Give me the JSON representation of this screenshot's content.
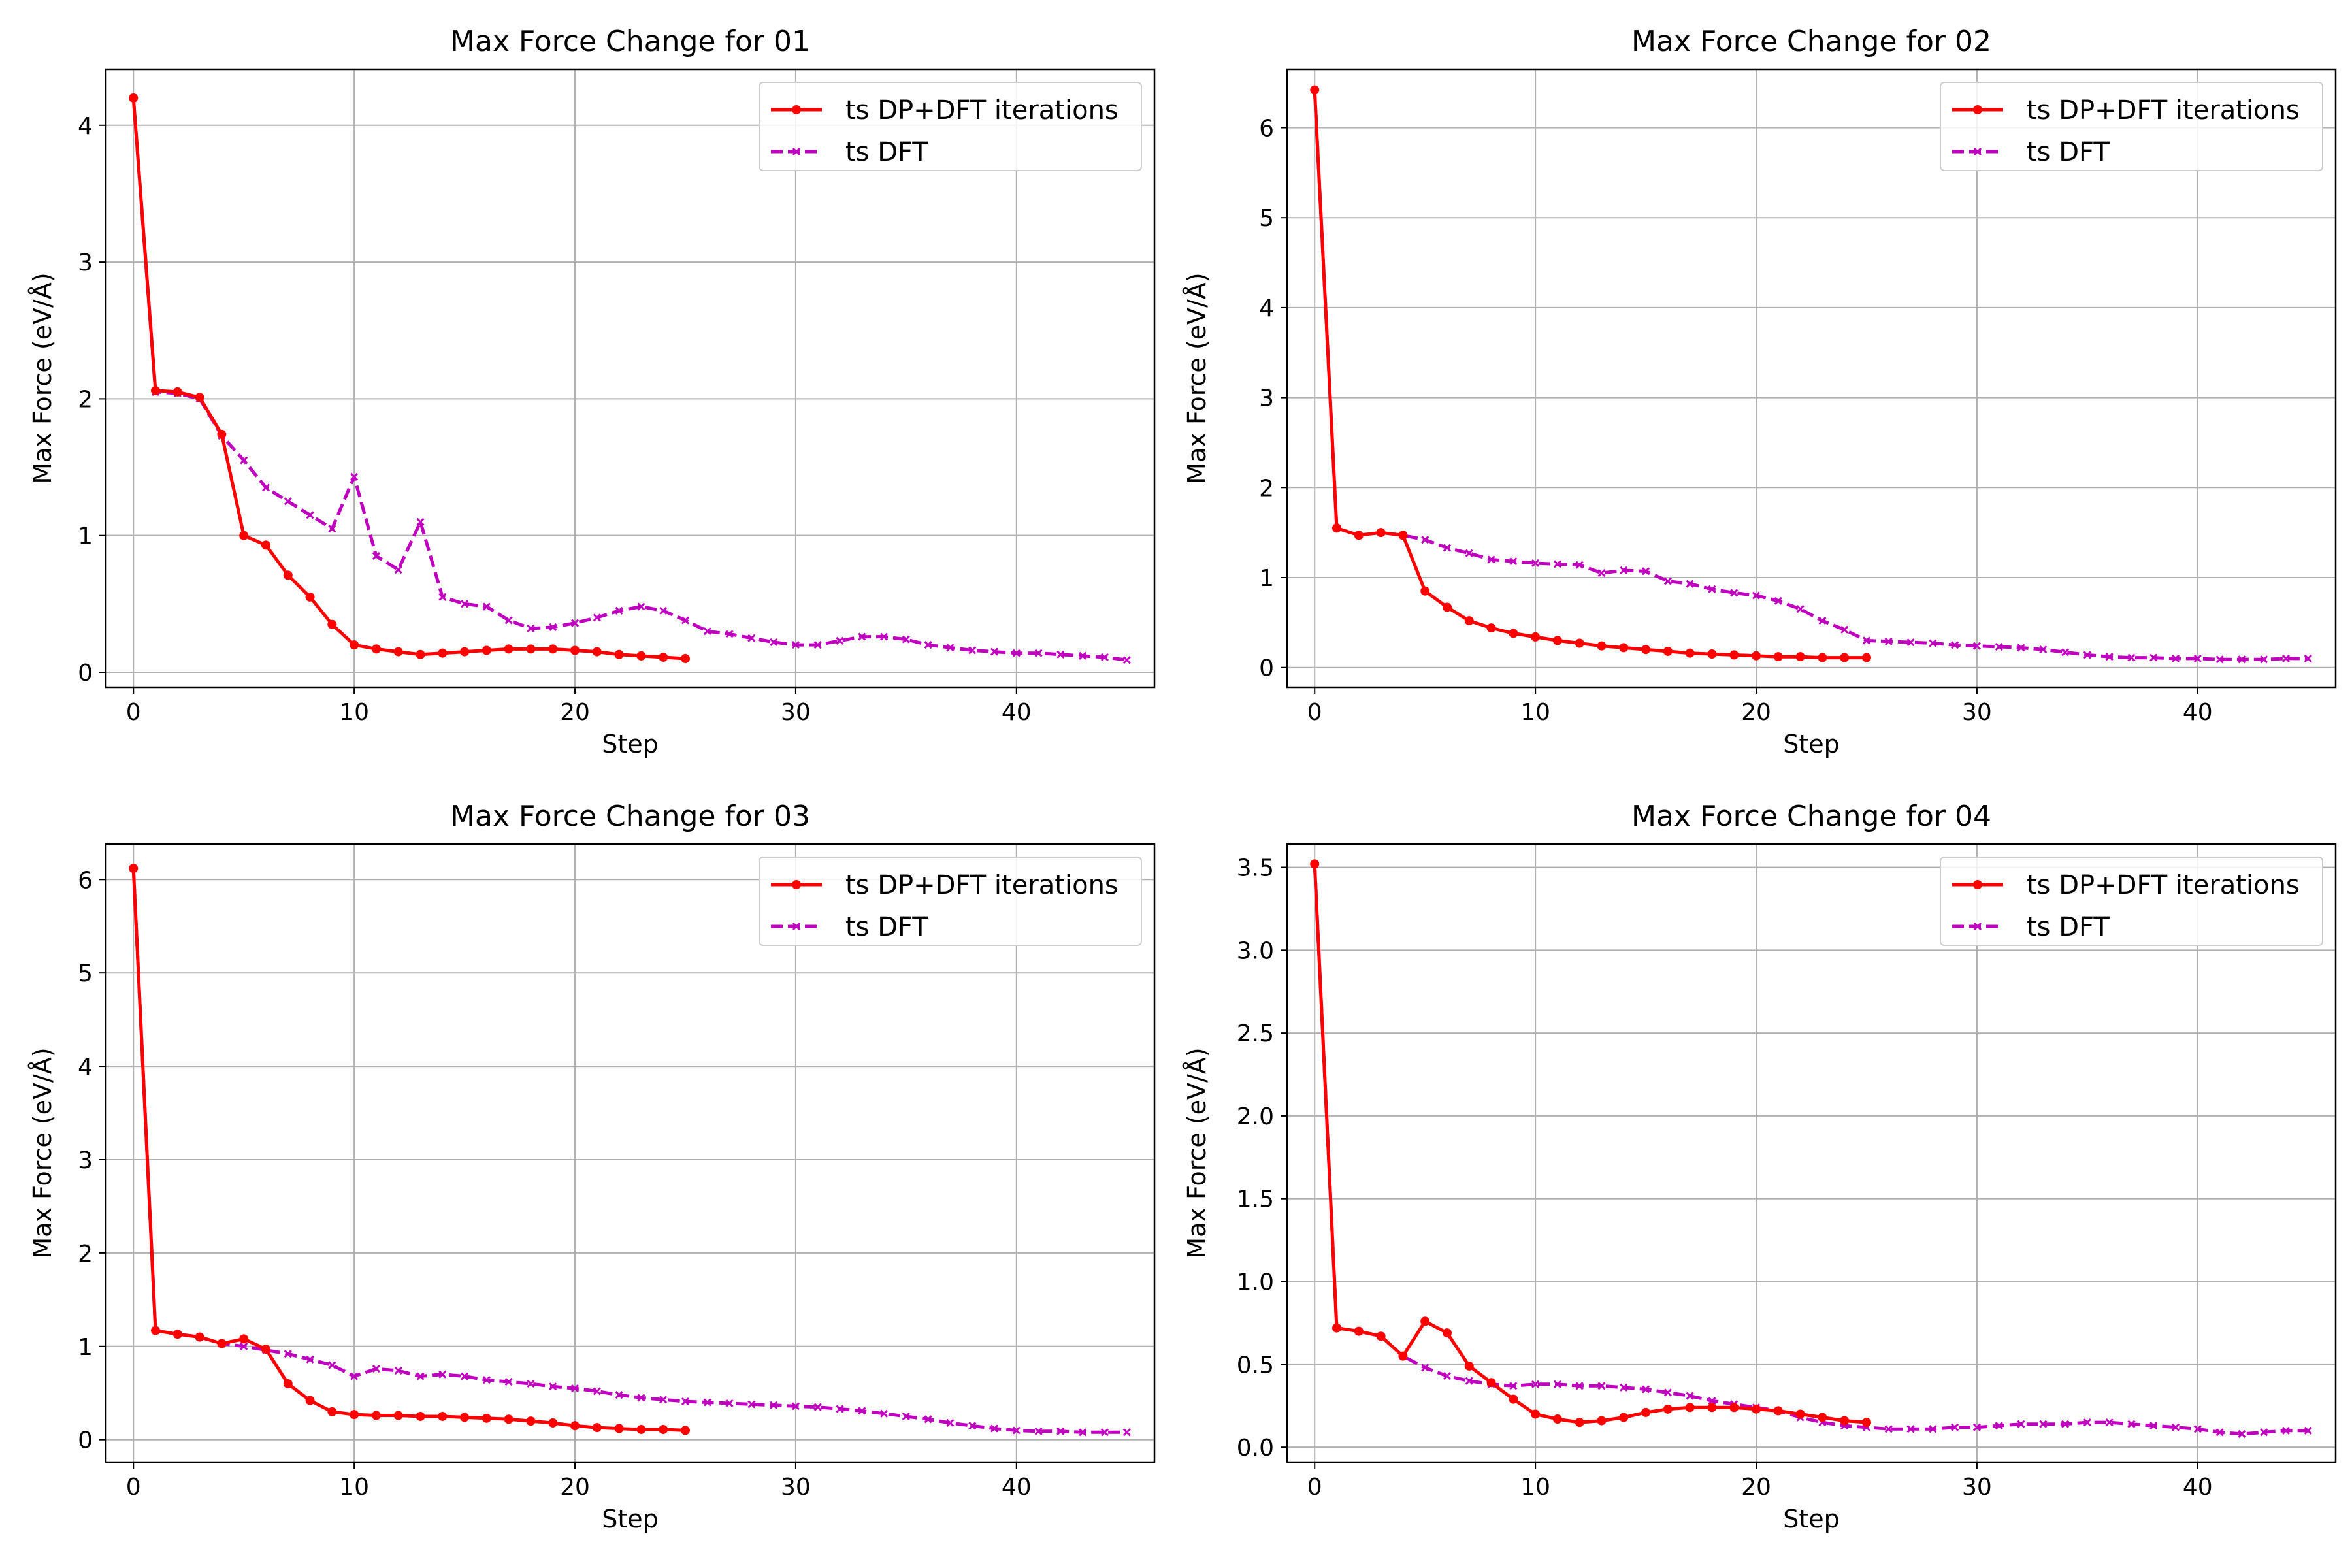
{
  "chart_data": [
    {
      "type": "line",
      "title": "Max Force Change for 01",
      "xlabel": "Step",
      "ylabel": "Max Force (eV/Å)",
      "xlim": [
        -1.25,
        46.25
      ],
      "ylim": [
        -0.11,
        4.41
      ],
      "xticks": [
        0,
        10,
        20,
        30,
        40
      ],
      "yticks": [
        0,
        1,
        2,
        3,
        4
      ],
      "ytick_labels": [
        "0",
        "1",
        "2",
        "3",
        "4"
      ],
      "grid": true,
      "legend": "top-right",
      "series": [
        {
          "name": "ts DP+DFT iterations",
          "color": "#ff0000",
          "style": "solid",
          "marker": "circle",
          "x": [
            0,
            1,
            2,
            3,
            4,
            5,
            6,
            7,
            8,
            9,
            10,
            11,
            12,
            13,
            14,
            15,
            16,
            17,
            18,
            19,
            20,
            21,
            22,
            23,
            24,
            25
          ],
          "values": [
            4.2,
            2.06,
            2.05,
            2.01,
            1.74,
            1.0,
            0.93,
            0.71,
            0.55,
            0.35,
            0.2,
            0.17,
            0.15,
            0.13,
            0.14,
            0.15,
            0.16,
            0.17,
            0.17,
            0.17,
            0.16,
            0.15,
            0.13,
            0.12,
            0.11,
            0.1
          ]
        },
        {
          "name": "ts DFT",
          "color": "#bf00bf",
          "style": "dashed",
          "marker": "x",
          "x": [
            0,
            1,
            2,
            3,
            4,
            5,
            6,
            7,
            8,
            9,
            10,
            11,
            12,
            13,
            14,
            15,
            16,
            17,
            18,
            19,
            20,
            21,
            22,
            23,
            24,
            25,
            26,
            27,
            28,
            29,
            30,
            31,
            32,
            33,
            34,
            35,
            36,
            37,
            38,
            39,
            40,
            41,
            42,
            43,
            44,
            45
          ],
          "values": [
            4.2,
            2.05,
            2.04,
            2.0,
            1.73,
            1.55,
            1.35,
            1.25,
            1.15,
            1.05,
            1.43,
            0.85,
            0.75,
            1.1,
            0.55,
            0.5,
            0.48,
            0.38,
            0.32,
            0.33,
            0.36,
            0.4,
            0.45,
            0.48,
            0.45,
            0.38,
            0.3,
            0.28,
            0.25,
            0.22,
            0.2,
            0.2,
            0.23,
            0.26,
            0.26,
            0.24,
            0.2,
            0.18,
            0.16,
            0.15,
            0.14,
            0.14,
            0.13,
            0.12,
            0.11,
            0.09
          ]
        }
      ]
    },
    {
      "type": "line",
      "title": "Max Force Change for 02",
      "xlabel": "Step",
      "ylabel": "Max Force (eV/Å)",
      "xlim": [
        -1.25,
        46.25
      ],
      "ylim": [
        -0.22,
        6.65
      ],
      "xticks": [
        0,
        10,
        20,
        30,
        40
      ],
      "yticks": [
        0,
        1,
        2,
        3,
        4,
        5,
        6
      ],
      "ytick_labels": [
        "0",
        "1",
        "2",
        "3",
        "4",
        "5",
        "6"
      ],
      "grid": true,
      "legend": "top-right",
      "series": [
        {
          "name": "ts DP+DFT iterations",
          "color": "#ff0000",
          "style": "solid",
          "marker": "circle",
          "x": [
            0,
            1,
            2,
            3,
            4,
            5,
            6,
            7,
            8,
            9,
            10,
            11,
            12,
            13,
            14,
            15,
            16,
            17,
            18,
            19,
            20,
            21,
            22,
            23,
            24,
            25
          ],
          "values": [
            6.42,
            1.55,
            1.47,
            1.5,
            1.47,
            0.85,
            0.67,
            0.52,
            0.44,
            0.38,
            0.34,
            0.3,
            0.27,
            0.24,
            0.22,
            0.2,
            0.18,
            0.16,
            0.15,
            0.14,
            0.13,
            0.12,
            0.12,
            0.11,
            0.11,
            0.11
          ]
        },
        {
          "name": "ts DFT",
          "color": "#bf00bf",
          "style": "dashed",
          "marker": "x",
          "x": [
            0,
            1,
            2,
            3,
            4,
            5,
            6,
            7,
            8,
            9,
            10,
            11,
            12,
            13,
            14,
            15,
            16,
            17,
            18,
            19,
            20,
            21,
            22,
            23,
            24,
            25,
            26,
            27,
            28,
            29,
            30,
            31,
            32,
            33,
            34,
            35,
            36,
            37,
            38,
            39,
            40,
            41,
            42,
            43,
            44,
            45
          ],
          "values": [
            6.42,
            1.55,
            1.47,
            1.5,
            1.47,
            1.42,
            1.33,
            1.27,
            1.2,
            1.18,
            1.16,
            1.15,
            1.14,
            1.05,
            1.08,
            1.07,
            0.96,
            0.93,
            0.87,
            0.83,
            0.8,
            0.74,
            0.65,
            0.52,
            0.42,
            0.3,
            0.29,
            0.28,
            0.27,
            0.25,
            0.24,
            0.23,
            0.22,
            0.2,
            0.17,
            0.14,
            0.12,
            0.11,
            0.11,
            0.1,
            0.1,
            0.09,
            0.09,
            0.09,
            0.1,
            0.1
          ]
        }
      ]
    },
    {
      "type": "line",
      "title": "Max Force Change for 03",
      "xlabel": "Step",
      "ylabel": "Max Force (eV/Å)",
      "xlim": [
        -1.25,
        46.25
      ],
      "ylim": [
        -0.24,
        6.38
      ],
      "xticks": [
        0,
        10,
        20,
        30,
        40
      ],
      "yticks": [
        0,
        1,
        2,
        3,
        4,
        5,
        6
      ],
      "ytick_labels": [
        "0",
        "1",
        "2",
        "3",
        "4",
        "5",
        "6"
      ],
      "grid": true,
      "legend": "top-right",
      "series": [
        {
          "name": "ts DP+DFT iterations",
          "color": "#ff0000",
          "style": "solid",
          "marker": "circle",
          "x": [
            0,
            1,
            2,
            3,
            4,
            5,
            6,
            7,
            8,
            9,
            10,
            11,
            12,
            13,
            14,
            15,
            16,
            17,
            18,
            19,
            20,
            21,
            22,
            23,
            24,
            25
          ],
          "values": [
            6.12,
            1.17,
            1.13,
            1.1,
            1.03,
            1.08,
            0.97,
            0.6,
            0.42,
            0.3,
            0.27,
            0.26,
            0.26,
            0.25,
            0.25,
            0.24,
            0.23,
            0.22,
            0.2,
            0.18,
            0.15,
            0.13,
            0.12,
            0.11,
            0.11,
            0.1
          ]
        },
        {
          "name": "ts DFT",
          "color": "#bf00bf",
          "style": "dashed",
          "marker": "x",
          "x": [
            0,
            1,
            2,
            3,
            4,
            5,
            6,
            7,
            8,
            9,
            10,
            11,
            12,
            13,
            14,
            15,
            16,
            17,
            18,
            19,
            20,
            21,
            22,
            23,
            24,
            25,
            26,
            27,
            28,
            29,
            30,
            31,
            32,
            33,
            34,
            35,
            36,
            37,
            38,
            39,
            40,
            41,
            42,
            43,
            44,
            45
          ],
          "values": [
            6.12,
            1.17,
            1.13,
            1.1,
            1.03,
            1.0,
            0.96,
            0.92,
            0.86,
            0.8,
            0.68,
            0.76,
            0.74,
            0.68,
            0.7,
            0.68,
            0.64,
            0.62,
            0.6,
            0.57,
            0.55,
            0.52,
            0.48,
            0.45,
            0.43,
            0.41,
            0.4,
            0.39,
            0.38,
            0.37,
            0.36,
            0.35,
            0.33,
            0.31,
            0.28,
            0.25,
            0.22,
            0.18,
            0.15,
            0.12,
            0.1,
            0.09,
            0.09,
            0.08,
            0.08,
            0.08
          ]
        }
      ]
    },
    {
      "type": "line",
      "title": "Max Force Change for 04",
      "xlabel": "Step",
      "ylabel": "Max Force (eV/Å)",
      "xlim": [
        -1.25,
        46.25
      ],
      "ylim": [
        -0.09,
        3.64
      ],
      "xticks": [
        0,
        10,
        20,
        30,
        40
      ],
      "yticks": [
        0,
        0.5,
        1,
        1.5,
        2,
        2.5,
        3,
        3.5
      ],
      "ytick_labels": [
        "0.0",
        "0.5",
        "1.0",
        "1.5",
        "2.0",
        "2.5",
        "3.0",
        "3.5"
      ],
      "grid": true,
      "legend": "top-right",
      "series": [
        {
          "name": "ts DP+DFT iterations",
          "color": "#ff0000",
          "style": "solid",
          "marker": "circle",
          "x": [
            0,
            1,
            2,
            3,
            4,
            5,
            6,
            7,
            8,
            9,
            10,
            11,
            12,
            13,
            14,
            15,
            16,
            17,
            18,
            19,
            20,
            21,
            22,
            23,
            24,
            25
          ],
          "values": [
            3.52,
            0.72,
            0.7,
            0.67,
            0.55,
            0.76,
            0.69,
            0.49,
            0.39,
            0.29,
            0.2,
            0.17,
            0.15,
            0.16,
            0.18,
            0.21,
            0.23,
            0.24,
            0.24,
            0.24,
            0.23,
            0.22,
            0.2,
            0.18,
            0.16,
            0.15
          ]
        },
        {
          "name": "ts DFT",
          "color": "#bf00bf",
          "style": "dashed",
          "marker": "x",
          "x": [
            0,
            1,
            2,
            3,
            4,
            5,
            6,
            7,
            8,
            9,
            10,
            11,
            12,
            13,
            14,
            15,
            16,
            17,
            18,
            19,
            20,
            21,
            22,
            23,
            24,
            25,
            26,
            27,
            28,
            29,
            30,
            31,
            32,
            33,
            34,
            35,
            36,
            37,
            38,
            39,
            40,
            41,
            42,
            43,
            44,
            45
          ],
          "values": [
            3.52,
            0.72,
            0.7,
            0.67,
            0.55,
            0.48,
            0.43,
            0.4,
            0.38,
            0.37,
            0.38,
            0.38,
            0.37,
            0.37,
            0.36,
            0.35,
            0.33,
            0.31,
            0.28,
            0.26,
            0.24,
            0.22,
            0.18,
            0.15,
            0.13,
            0.12,
            0.11,
            0.11,
            0.11,
            0.12,
            0.12,
            0.13,
            0.14,
            0.14,
            0.14,
            0.15,
            0.15,
            0.14,
            0.13,
            0.12,
            0.11,
            0.09,
            0.08,
            0.09,
            0.1,
            0.1
          ]
        }
      ]
    }
  ]
}
